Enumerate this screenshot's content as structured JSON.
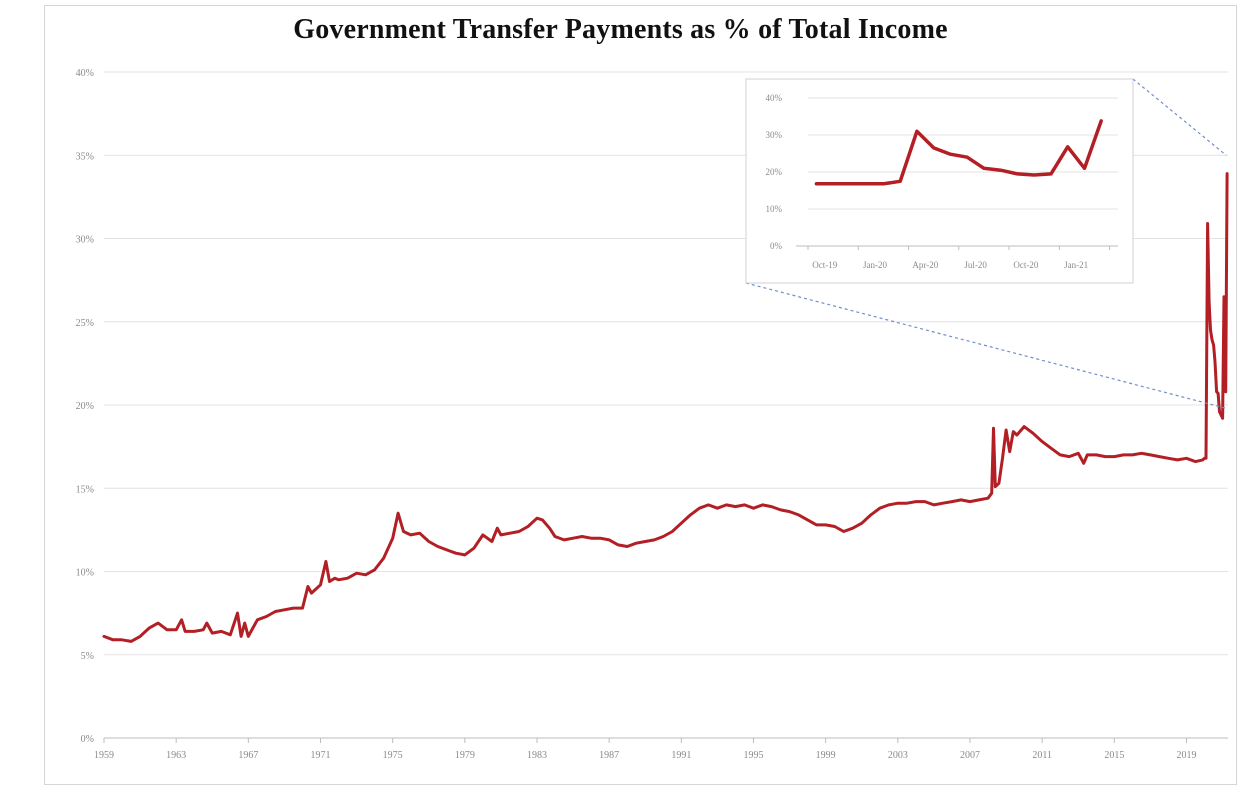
{
  "chart_data": [
    {
      "type": "line",
      "title": "Government Transfer Payments as % of  Total Income",
      "xlabel": "",
      "ylabel": "",
      "x_range": [
        1959,
        2021.3
      ],
      "ylim": [
        0,
        40
      ],
      "y_ticks": [
        "0%",
        "5%",
        "10%",
        "15%",
        "20%",
        "25%",
        "30%",
        "35%",
        "40%"
      ],
      "x_ticks": [
        "1959",
        "1963",
        "1967",
        "1971",
        "1975",
        "1979",
        "1983",
        "1987",
        "1991",
        "1995",
        "1999",
        "2003",
        "2007",
        "2011",
        "2015",
        "2019"
      ],
      "grid": true,
      "color": "#b21f24",
      "series": [
        {
          "x": [
            1959,
            1959.5,
            1960,
            1960.5,
            1961,
            1961.5,
            1962,
            1962.5,
            1963,
            1963.3,
            1963.5,
            1964,
            1964.5,
            1964.7,
            1965,
            1965.5,
            1966,
            1966.4,
            1966.6,
            1966.8,
            1967,
            1967.5,
            1968,
            1968.5,
            1969,
            1969.5,
            1970,
            1970.3,
            1970.5,
            1971,
            1971.3,
            1971.5,
            1971.8,
            1972,
            1972.5,
            1973,
            1973.5,
            1974,
            1974.5,
            1975,
            1975.3,
            1975.6,
            1976,
            1976.5,
            1977,
            1977.5,
            1978,
            1978.5,
            1979,
            1979.5,
            1980,
            1980.5,
            1980.8,
            1981,
            1981.5,
            1982,
            1982.5,
            1983,
            1983.3,
            1983.7,
            1984,
            1984.5,
            1985,
            1985.5,
            1986,
            1986.5,
            1987,
            1987.5,
            1988,
            1988.5,
            1989,
            1989.5,
            1990,
            1990.5,
            1991,
            1991.5,
            1992,
            1992.5,
            1993,
            1993.5,
            1994,
            1994.5,
            1995,
            1995.5,
            1996,
            1996.5,
            1997,
            1997.5,
            1998,
            1998.5,
            1999,
            1999.5,
            2000,
            2000.5,
            2001,
            2001.5,
            2002,
            2002.5,
            2003,
            2003.5,
            2004,
            2004.5,
            2005,
            2005.5,
            2006,
            2006.5,
            2007,
            2007.5,
            2008,
            2008.2,
            2008.3,
            2008.4,
            2008.6,
            2008.8,
            2009,
            2009.2,
            2009.4,
            2009.6,
            2010,
            2010.5,
            2011,
            2011.5,
            2012,
            2012.5,
            2013,
            2013.3,
            2013.5,
            2014,
            2014.5,
            2015,
            2015.5,
            2016,
            2016.5,
            2017,
            2017.5,
            2018,
            2018.5,
            2019,
            2019.5,
            2019.9,
            2020.0,
            2020.08,
            2020.17,
            2020.25,
            2020.33,
            2020.42,
            2020.5,
            2020.58,
            2020.67,
            2020.75,
            2020.83,
            2020.92,
            2021.0,
            2021.08,
            2021.17,
            2021.25
          ],
          "y": [
            6.1,
            5.9,
            5.9,
            5.8,
            6.1,
            6.6,
            6.9,
            6.5,
            6.5,
            7.1,
            6.4,
            6.4,
            6.5,
            6.9,
            6.3,
            6.4,
            6.2,
            7.5,
            6.1,
            6.9,
            6.1,
            7.1,
            7.3,
            7.6,
            7.7,
            7.8,
            7.8,
            9.1,
            8.7,
            9.2,
            10.6,
            9.4,
            9.6,
            9.5,
            9.6,
            9.9,
            9.8,
            10.1,
            10.8,
            12.0,
            13.5,
            12.4,
            12.2,
            12.3,
            11.8,
            11.5,
            11.3,
            11.1,
            11.0,
            11.4,
            12.2,
            11.8,
            12.6,
            12.2,
            12.3,
            12.4,
            12.7,
            13.2,
            13.1,
            12.6,
            12.1,
            11.9,
            12.0,
            12.1,
            12.0,
            12.0,
            11.9,
            11.6,
            11.5,
            11.7,
            11.8,
            11.9,
            12.1,
            12.4,
            12.9,
            13.4,
            13.8,
            14.0,
            13.8,
            14.0,
            13.9,
            14.0,
            13.8,
            14.0,
            13.9,
            13.7,
            13.6,
            13.4,
            13.1,
            12.8,
            12.8,
            12.7,
            12.4,
            12.6,
            12.9,
            13.4,
            13.8,
            14.0,
            14.1,
            14.1,
            14.2,
            14.2,
            14.0,
            14.1,
            14.2,
            14.3,
            14.2,
            14.3,
            14.4,
            14.7,
            18.6,
            15.1,
            15.3,
            16.8,
            18.5,
            17.2,
            18.4,
            18.2,
            18.7,
            18.3,
            17.8,
            17.4,
            17.0,
            16.9,
            17.1,
            16.5,
            17.0,
            17.0,
            16.9,
            16.9,
            17.0,
            17.0,
            17.1,
            17.0,
            16.9,
            16.8,
            16.7,
            16.8,
            16.6,
            16.7,
            16.8,
            16.8,
            30.9,
            26.2,
            24.5,
            23.9,
            23.6,
            22.6,
            20.8,
            20.7,
            19.6,
            19.4,
            19.2,
            26.5,
            20.8,
            33.9
          ]
        }
      ]
    },
    {
      "type": "line",
      "title": "",
      "xlabel": "",
      "ylabel": "",
      "x_range": [
        -0.5,
        18
      ],
      "ylim": [
        0,
        40
      ],
      "y_ticks": [
        "0%",
        "10%",
        "20%",
        "30%",
        "40%"
      ],
      "x_ticks": [
        "Oct-19",
        "Jan-20",
        "Apr-20",
        "Jul-20",
        "Oct-20",
        "Jan-21"
      ],
      "x_tick_index": [
        0,
        3,
        6,
        9,
        12,
        15
      ],
      "grid": true,
      "color": "#b21f24",
      "series": [
        {
          "x": [
            "Oct-19",
            "Nov-19",
            "Dec-19",
            "Jan-20",
            "Feb-20",
            "Mar-20",
            "Apr-20",
            "May-20",
            "Jun-20",
            "Jul-20",
            "Aug-20",
            "Sep-20",
            "Oct-20",
            "Nov-20",
            "Dec-20",
            "Jan-21",
            "Feb-21",
            "Mar-21"
          ],
          "y": [
            16.8,
            16.8,
            16.8,
            16.8,
            16.8,
            17.5,
            31.0,
            26.5,
            24.8,
            24.0,
            21.0,
            20.5,
            19.5,
            19.2,
            19.5,
            26.8,
            21.0,
            33.8
          ]
        }
      ]
    }
  ]
}
